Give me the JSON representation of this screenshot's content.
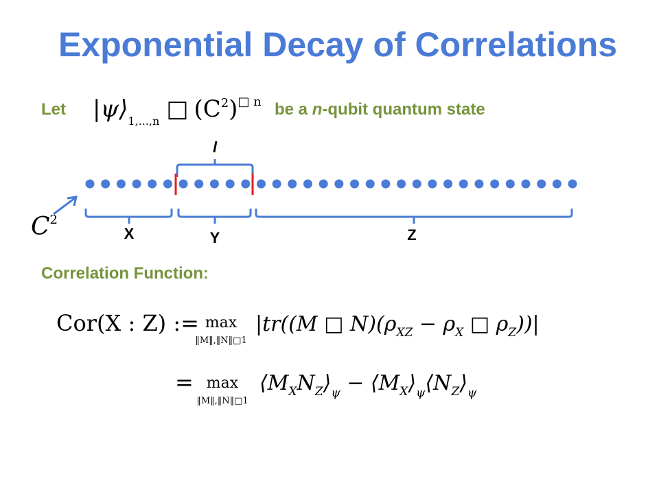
{
  "title": "Exponential Decay of Correlations",
  "intro": {
    "prefix": "Let",
    "state": "|ψ⟩",
    "state_sub": "1,...,n",
    "membership": "□",
    "space": "(C",
    "space_power": "2",
    "space_close": ")",
    "tensor_power": "□ n",
    "suffix_1": "be a ",
    "suffix_italic": "n",
    "suffix_2": "-qubit quantum state"
  },
  "chain": {
    "region_label": "l",
    "qubit_space": "C",
    "qubit_power": "2",
    "labels": [
      "X",
      "Y",
      "Z"
    ]
  },
  "correlation": {
    "heading": "Correlation Function:",
    "line_1": {
      "lhs": "Cor(X : Z) :=",
      "max": "max",
      "constraint": "‖M‖,‖N‖□1",
      "body_1": "|tr((M □ N)(ρ",
      "sub_xz": "XZ",
      "body_2": " − ρ",
      "sub_x": "X",
      "body_3": " □ ρ",
      "sub_z": "Z",
      "body_4": "))|"
    },
    "line_2": {
      "eq": "=",
      "max": "max",
      "constraint": "‖M‖,‖N‖□1",
      "term_1": "⟨M",
      "sub_1": "X",
      "term_2": "N",
      "sub_2": "Z",
      "term_3": "⟩",
      "sub_3": "ψ",
      "term_4": " − ⟨M",
      "sub_4": "X",
      "term_5": "⟩",
      "sub_5": "ψ",
      "term_6": "⟨N",
      "sub_6": "Z",
      "term_7": "⟩",
      "sub_7": "ψ"
    }
  }
}
